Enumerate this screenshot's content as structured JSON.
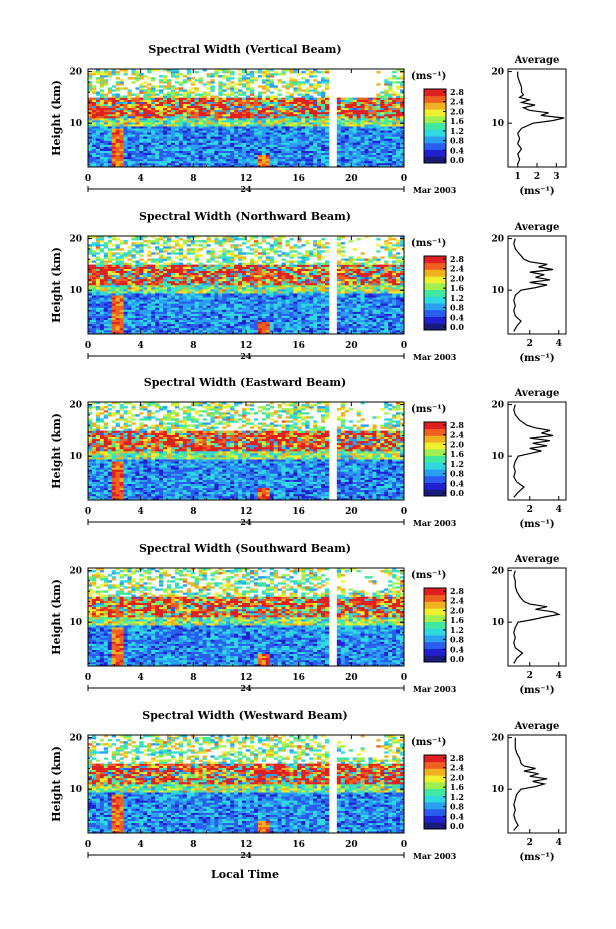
{
  "figure": {
    "xlabel": "Local Time",
    "date_label": "Mar 2003",
    "date_day": "24",
    "ylabel": "Height (km)",
    "colorbar_unit": "(ms⁻¹)",
    "colorbar_ticks": [
      "0.0",
      "0.4",
      "0.8",
      "1.2",
      "1.6",
      "2.0",
      "2.4",
      "2.8"
    ],
    "colorbar_colors": [
      "#1a1a7a",
      "#2020d0",
      "#2a5cf0",
      "#2aa0f0",
      "#30d8e0",
      "#40e8a0",
      "#a0f050",
      "#f0f030",
      "#f0b020",
      "#f06020",
      "#e02020"
    ],
    "avg_title": "Average",
    "avg_xlabel": "(ms⁻¹)"
  },
  "chart_data": [
    {
      "type": "heatmap",
      "title": "Spectral Width (Vertical Beam)",
      "x_ticks": [
        "0",
        "4",
        "8",
        "12",
        "16",
        "20",
        "0"
      ],
      "xlim": [
        0,
        24
      ],
      "y_ticks": [
        "10",
        "20"
      ],
      "ylim": [
        1.5,
        20.5
      ],
      "clim": [
        0.0,
        2.8
      ],
      "data_gap_hours": [
        18.4,
        18.9
      ],
      "avg_profile": {
        "type": "line",
        "x_ticks": [
          "1",
          "2",
          "3"
        ],
        "xlim": [
          0.5,
          3.5
        ],
        "y_ticks": [
          "10",
          "20"
        ],
        "ylim": [
          1.5,
          20.5
        ],
        "values": [
          [
            1.0,
            2
          ],
          [
            1.1,
            3
          ],
          [
            1.0,
            4
          ],
          [
            1.2,
            5
          ],
          [
            1.0,
            6
          ],
          [
            1.1,
            7
          ],
          [
            1.0,
            8
          ],
          [
            1.2,
            9
          ],
          [
            1.8,
            10
          ],
          [
            2.8,
            10.5
          ],
          [
            3.4,
            11
          ],
          [
            2.2,
            11.5
          ],
          [
            2.6,
            12
          ],
          [
            1.6,
            12.5
          ],
          [
            1.3,
            13
          ],
          [
            1.9,
            13.5
          ],
          [
            1.2,
            14
          ],
          [
            1.6,
            14.5
          ],
          [
            1.1,
            15
          ],
          [
            1.3,
            15.5
          ],
          [
            1.2,
            16
          ],
          [
            1.2,
            17
          ],
          [
            1.1,
            18
          ],
          [
            1.0,
            19
          ],
          [
            1.0,
            20
          ]
        ]
      }
    },
    {
      "type": "heatmap",
      "title": "Spectral Width (Northward Beam)",
      "x_ticks": [
        "0",
        "4",
        "8",
        "12",
        "16",
        "20",
        "0"
      ],
      "xlim": [
        0,
        24
      ],
      "y_ticks": [
        "10",
        "20"
      ],
      "ylim": [
        1.5,
        20.5
      ],
      "clim": [
        0.0,
        2.8
      ],
      "data_gap_hours": [
        18.4,
        18.9
      ],
      "avg_profile": {
        "type": "line",
        "x_ticks": [
          "2",
          "4"
        ],
        "xlim": [
          0.5,
          4.5
        ],
        "y_ticks": [
          "10",
          "20"
        ],
        "ylim": [
          1.5,
          20.5
        ],
        "values": [
          [
            0.9,
            2
          ],
          [
            1.1,
            3
          ],
          [
            1.4,
            4
          ],
          [
            1.0,
            5
          ],
          [
            0.9,
            6
          ],
          [
            1.0,
            7
          ],
          [
            0.9,
            8
          ],
          [
            1.0,
            9
          ],
          [
            1.4,
            10
          ],
          [
            2.4,
            10.5
          ],
          [
            3.2,
            11
          ],
          [
            2.0,
            11.5
          ],
          [
            3.4,
            12
          ],
          [
            2.4,
            12.5
          ],
          [
            3.0,
            13
          ],
          [
            2.0,
            13.5
          ],
          [
            3.6,
            14
          ],
          [
            2.6,
            14.5
          ],
          [
            3.2,
            15
          ],
          [
            2.0,
            15.5
          ],
          [
            1.6,
            16
          ],
          [
            1.3,
            17
          ],
          [
            1.0,
            18
          ],
          [
            0.9,
            19
          ],
          [
            1.0,
            20
          ]
        ]
      }
    },
    {
      "type": "heatmap",
      "title": "Spectral Width (Eastward Beam)",
      "x_ticks": [
        "0",
        "4",
        "8",
        "12",
        "16",
        "20",
        "0"
      ],
      "xlim": [
        0,
        24
      ],
      "y_ticks": [
        "10",
        "20"
      ],
      "ylim": [
        1.5,
        20.5
      ],
      "clim": [
        0.0,
        2.8
      ],
      "data_gap_hours": [
        18.4,
        18.9
      ],
      "avg_profile": {
        "type": "line",
        "x_ticks": [
          "2",
          "4"
        ],
        "xlim": [
          0.5,
          4.5
        ],
        "y_ticks": [
          "10",
          "20"
        ],
        "ylim": [
          1.5,
          20.5
        ],
        "values": [
          [
            0.9,
            2
          ],
          [
            1.2,
            3
          ],
          [
            1.6,
            4
          ],
          [
            1.1,
            5
          ],
          [
            0.9,
            6
          ],
          [
            1.0,
            7
          ],
          [
            0.9,
            8
          ],
          [
            1.0,
            9
          ],
          [
            1.2,
            10
          ],
          [
            2.0,
            10.5
          ],
          [
            2.8,
            11
          ],
          [
            2.0,
            11.5
          ],
          [
            3.2,
            12
          ],
          [
            2.2,
            12.5
          ],
          [
            3.4,
            13
          ],
          [
            2.0,
            13.5
          ],
          [
            3.6,
            14
          ],
          [
            2.8,
            14.5
          ],
          [
            3.4,
            15
          ],
          [
            2.4,
            15.5
          ],
          [
            1.8,
            16
          ],
          [
            1.3,
            17
          ],
          [
            1.0,
            18
          ],
          [
            0.9,
            19
          ],
          [
            1.0,
            20
          ]
        ]
      }
    },
    {
      "type": "heatmap",
      "title": "Spectral Width (Southward Beam)",
      "x_ticks": [
        "0",
        "4",
        "8",
        "12",
        "16",
        "20",
        "0"
      ],
      "xlim": [
        0,
        24
      ],
      "y_ticks": [
        "10",
        "20"
      ],
      "ylim": [
        1.5,
        20.5
      ],
      "clim": [
        0.0,
        2.8
      ],
      "data_gap_hours": [
        18.4,
        18.9
      ],
      "avg_profile": {
        "type": "line",
        "x_ticks": [
          "2",
          "4"
        ],
        "xlim": [
          0.5,
          4.5
        ],
        "y_ticks": [
          "10",
          "20"
        ],
        "ylim": [
          1.5,
          20.5
        ],
        "values": [
          [
            0.9,
            2
          ],
          [
            1.1,
            3
          ],
          [
            1.5,
            4
          ],
          [
            1.0,
            5
          ],
          [
            0.9,
            6
          ],
          [
            1.0,
            7
          ],
          [
            0.9,
            8
          ],
          [
            1.0,
            9
          ],
          [
            1.2,
            10
          ],
          [
            2.2,
            10.5
          ],
          [
            3.0,
            11
          ],
          [
            4.0,
            11.5
          ],
          [
            3.6,
            12
          ],
          [
            2.4,
            12.5
          ],
          [
            3.2,
            13
          ],
          [
            2.0,
            13.5
          ],
          [
            1.6,
            14
          ],
          [
            1.3,
            15
          ],
          [
            1.1,
            16
          ],
          [
            1.0,
            17
          ],
          [
            1.0,
            18
          ],
          [
            0.9,
            19
          ],
          [
            1.0,
            20
          ]
        ]
      }
    },
    {
      "type": "heatmap",
      "title": "Spectral Width (Westward Beam)",
      "x_ticks": [
        "0",
        "4",
        "8",
        "12",
        "16",
        "20",
        "0"
      ],
      "xlim": [
        0,
        24
      ],
      "y_ticks": [
        "10",
        "20"
      ],
      "ylim": [
        1.5,
        20.5
      ],
      "clim": [
        0.0,
        2.8
      ],
      "data_gap_hours": [
        18.4,
        18.9
      ],
      "avg_profile": {
        "type": "line",
        "x_ticks": [
          "2",
          "4"
        ],
        "xlim": [
          0.5,
          4.5
        ],
        "y_ticks": [
          "10",
          "20"
        ],
        "ylim": [
          1.5,
          20.5
        ],
        "values": [
          [
            0.9,
            2
          ],
          [
            1.2,
            3
          ],
          [
            1.0,
            4
          ],
          [
            0.9,
            5
          ],
          [
            1.0,
            6
          ],
          [
            0.9,
            7
          ],
          [
            1.0,
            8
          ],
          [
            1.1,
            9
          ],
          [
            1.4,
            10
          ],
          [
            2.4,
            10.5
          ],
          [
            3.0,
            11
          ],
          [
            2.2,
            11.5
          ],
          [
            3.2,
            12
          ],
          [
            2.0,
            12.5
          ],
          [
            2.6,
            13
          ],
          [
            1.6,
            13.5
          ],
          [
            2.4,
            14
          ],
          [
            1.6,
            14.5
          ],
          [
            1.4,
            15
          ],
          [
            1.3,
            16
          ],
          [
            1.1,
            17
          ],
          [
            1.0,
            18
          ],
          [
            1.0,
            19
          ],
          [
            1.0,
            20
          ]
        ]
      }
    }
  ]
}
